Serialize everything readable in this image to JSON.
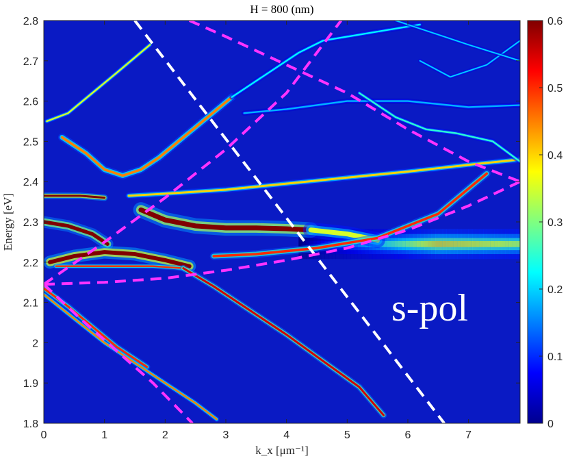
{
  "chart_data": {
    "type": "heatmap",
    "title": "H = 800 (nm)",
    "xlabel": "k_x [μm⁻¹]",
    "ylabel": "Energy [eV]",
    "xlim": [
      0,
      7.85
    ],
    "ylim": [
      1.8,
      2.8
    ],
    "x_ticks": [
      "0",
      "1",
      "2",
      "3",
      "4",
      "5",
      "6",
      "7"
    ],
    "y_ticks": [
      "1.8",
      "1.9",
      "2",
      "2.1",
      "2.2",
      "2.3",
      "2.4",
      "2.5",
      "2.6",
      "2.7",
      "2.8"
    ],
    "colorbar": {
      "range": [
        0,
        0.6
      ],
      "ticks": [
        "0",
        "0.1",
        "0.2",
        "0.3",
        "0.4",
        "0.5",
        "0.6"
      ],
      "colormap": "jet"
    },
    "background_color": "#0a1ac4",
    "annotation": "s-pol",
    "bands": [
      {
        "name": "upper-lower-branch",
        "points": [
          [
            0.05,
            2.55
          ],
          [
            0.4,
            2.57
          ],
          [
            0.8,
            2.62
          ],
          [
            1.2,
            2.67
          ],
          [
            1.75,
            2.74
          ]
        ],
        "peak": 0.35,
        "width": 0.004
      },
      {
        "name": "upper-polariton-arc",
        "points": [
          [
            0.3,
            2.51
          ],
          [
            0.7,
            2.47
          ],
          [
            1.0,
            2.43
          ],
          [
            1.3,
            2.415
          ],
          [
            1.6,
            2.43
          ],
          [
            1.9,
            2.46
          ],
          [
            2.3,
            2.51
          ],
          [
            2.7,
            2.56
          ],
          [
            3.1,
            2.61
          ]
        ],
        "peak": 0.45,
        "width": 0.006
      },
      {
        "name": "band-2.365",
        "points": [
          [
            0,
            2.365
          ],
          [
            0.6,
            2.365
          ],
          [
            1.0,
            2.36
          ]
        ],
        "peak": 0.7,
        "width": 0.005
      },
      {
        "name": "band-2.30",
        "points": [
          [
            0,
            2.3
          ],
          [
            0.4,
            2.29
          ],
          [
            0.8,
            2.27
          ],
          [
            1.05,
            2.245
          ]
        ],
        "peak": 0.6,
        "width": 0.009
      },
      {
        "name": "middle-polariton",
        "points": [
          [
            1.6,
            2.33
          ],
          [
            2.0,
            2.305
          ],
          [
            2.5,
            2.29
          ],
          [
            3.0,
            2.285
          ],
          [
            3.5,
            2.285
          ],
          [
            4.0,
            2.283
          ],
          [
            4.4,
            2.28
          ]
        ],
        "peak": 0.65,
        "width": 0.012
      },
      {
        "name": "middle-tail",
        "points": [
          [
            4.4,
            2.28
          ],
          [
            5.0,
            2.27
          ],
          [
            5.5,
            2.255
          ]
        ],
        "peak": 0.35,
        "width": 0.012
      },
      {
        "name": "cross-band",
        "points": [
          [
            1.4,
            2.365
          ],
          [
            2.0,
            2.37
          ],
          [
            3.0,
            2.38
          ],
          [
            4.0,
            2.395
          ],
          [
            5.0,
            2.41
          ],
          [
            6.0,
            2.425
          ],
          [
            7.2,
            2.445
          ],
          [
            7.85,
            2.455
          ]
        ],
        "peak": 0.4,
        "width": 0.005
      },
      {
        "name": "lower-rising-band",
        "points": [
          [
            2.8,
            2.215
          ],
          [
            3.5,
            2.22
          ],
          [
            4.5,
            2.235
          ],
          [
            5.5,
            2.26
          ],
          [
            6.5,
            2.32
          ],
          [
            7.3,
            2.42
          ]
        ],
        "peak": 0.5,
        "width": 0.006
      },
      {
        "name": "lower-arc-top",
        "points": [
          [
            0.1,
            2.2
          ],
          [
            0.5,
            2.215
          ],
          [
            1.0,
            2.225
          ],
          [
            1.5,
            2.22
          ],
          [
            2.0,
            2.205
          ],
          [
            2.4,
            2.19
          ]
        ],
        "peak": 0.7,
        "width": 0.01
      },
      {
        "name": "lower-arc-line",
        "points": [
          [
            0.2,
            2.19
          ],
          [
            1.0,
            2.19
          ],
          [
            1.8,
            2.19
          ],
          [
            2.3,
            2.185
          ]
        ],
        "peak": 0.5,
        "width": 0.004
      },
      {
        "name": "descending-long",
        "points": [
          [
            2.3,
            2.185
          ],
          [
            2.8,
            2.14
          ],
          [
            3.4,
            2.08
          ],
          [
            4.0,
            2.02
          ],
          [
            4.6,
            1.955
          ],
          [
            5.2,
            1.89
          ],
          [
            5.6,
            1.82
          ]
        ],
        "peak": 0.55,
        "width": 0.005
      },
      {
        "name": "descending-left-upper",
        "points": [
          [
            0,
            2.135
          ],
          [
            0.4,
            2.09
          ],
          [
            0.8,
            2.04
          ],
          [
            1.2,
            1.99
          ],
          [
            1.7,
            1.94
          ]
        ],
        "peak": 0.5,
        "width": 0.005
      },
      {
        "name": "descending-left-lower",
        "points": [
          [
            0,
            2.12
          ],
          [
            0.5,
            2.06
          ],
          [
            1.0,
            2.0
          ],
          [
            1.5,
            1.95
          ],
          [
            2.0,
            1.9
          ],
          [
            2.5,
            1.85
          ],
          [
            2.85,
            1.81
          ]
        ],
        "peak": 0.45,
        "width": 0.004
      },
      {
        "name": "upper-right-band-1",
        "points": [
          [
            3.1,
            2.61
          ],
          [
            3.6,
            2.66
          ],
          [
            4.2,
            2.72
          ],
          [
            4.6,
            2.75
          ],
          [
            5.4,
            2.77
          ],
          [
            6.2,
            2.79
          ]
        ],
        "peak": 0.22,
        "width": 0.004
      },
      {
        "name": "upper-right-band-2",
        "points": [
          [
            3.3,
            2.57
          ],
          [
            4.0,
            2.58
          ],
          [
            5.0,
            2.6
          ],
          [
            6.0,
            2.6
          ],
          [
            7.0,
            2.585
          ],
          [
            7.85,
            2.59
          ]
        ],
        "peak": 0.18,
        "width": 0.004
      },
      {
        "name": "upper-right-band-3",
        "points": [
          [
            5.2,
            2.62
          ],
          [
            5.8,
            2.56
          ],
          [
            6.3,
            2.53
          ],
          [
            6.8,
            2.52
          ],
          [
            7.4,
            2.5
          ],
          [
            7.85,
            2.45
          ]
        ],
        "peak": 0.25,
        "width": 0.004
      },
      {
        "name": "upper-right-band-4",
        "points": [
          [
            6.2,
            2.7
          ],
          [
            6.7,
            2.66
          ],
          [
            7.3,
            2.69
          ],
          [
            7.85,
            2.75
          ]
        ],
        "peak": 0.2,
        "width": 0.003
      },
      {
        "name": "upper-right-band-5",
        "points": [
          [
            5.8,
            2.8
          ],
          [
            6.2,
            2.78
          ],
          [
            7.0,
            2.74
          ],
          [
            7.85,
            2.7
          ]
        ],
        "peak": 0.2,
        "width": 0.003
      }
    ],
    "broad_glow": {
      "center_energy": 2.245,
      "x_start": 4.2,
      "x_peak": 6.5,
      "peak": 0.42,
      "width": 0.025
    },
    "dashed_lines": [
      {
        "color": "#ffffff",
        "points": [
          [
            1.5,
            2.8
          ],
          [
            6.6,
            1.8
          ]
        ]
      },
      {
        "color": "#ff33ff",
        "points": [
          [
            0,
            2.145
          ],
          [
            1.0,
            2.25
          ],
          [
            2.0,
            2.36
          ],
          [
            3.0,
            2.48
          ],
          [
            4.0,
            2.62
          ],
          [
            4.9,
            2.8
          ]
        ]
      },
      {
        "color": "#ff33ff",
        "points": [
          [
            0,
            2.145
          ],
          [
            1.0,
            2.15
          ],
          [
            2.0,
            2.16
          ],
          [
            3.0,
            2.18
          ],
          [
            4.0,
            2.205
          ],
          [
            5.0,
            2.235
          ],
          [
            6.0,
            2.28
          ],
          [
            7.0,
            2.34
          ],
          [
            7.85,
            2.4
          ]
        ]
      },
      {
        "color": "#ff33ff",
        "points": [
          [
            2.4,
            2.8
          ],
          [
            3.0,
            2.76
          ],
          [
            4.0,
            2.69
          ],
          [
            5.0,
            2.62
          ],
          [
            6.0,
            2.53
          ],
          [
            7.0,
            2.45
          ],
          [
            7.85,
            2.4
          ]
        ]
      },
      {
        "color": "#ff33ff",
        "points": [
          [
            0,
            2.145
          ],
          [
            0.6,
            2.06
          ],
          [
            1.2,
            1.98
          ],
          [
            1.8,
            1.9
          ],
          [
            2.45,
            1.8
          ]
        ]
      }
    ]
  }
}
